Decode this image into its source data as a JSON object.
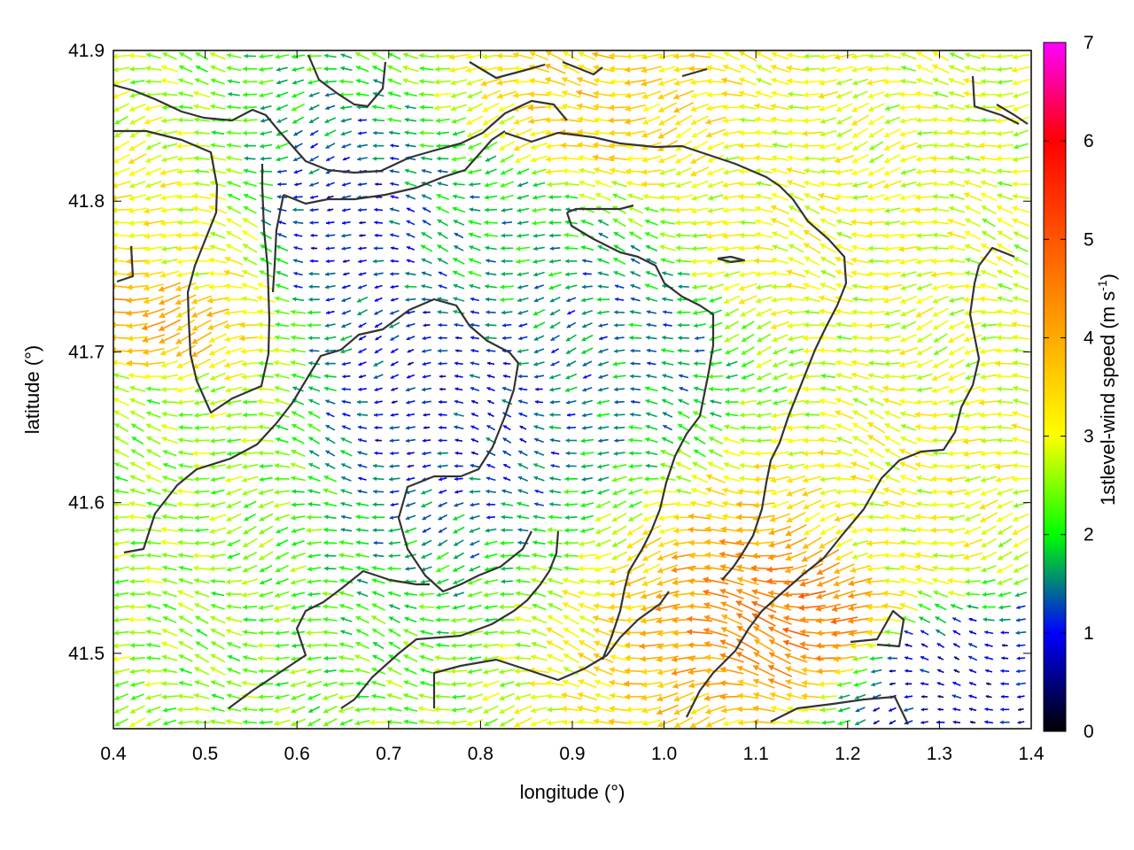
{
  "chart_data": {
    "type": "quiver",
    "title": "",
    "xlabel": "longitude (°)",
    "ylabel": "latitude (°)",
    "xlim": [
      0.4,
      1.4
    ],
    "ylim": [
      41.45,
      41.9
    ],
    "x_ticks": [
      0.4,
      0.5,
      0.6,
      0.7,
      0.8,
      0.9,
      1.0,
      1.1,
      1.2,
      1.3,
      1.4
    ],
    "x_tick_labels": [
      "0.4",
      "0.5",
      "0.6",
      "0.7",
      "0.8",
      "0.9",
      "1.0",
      "1.1",
      "1.2",
      "1.3",
      "1.4"
    ],
    "y_ticks": [
      41.5,
      41.6,
      41.7,
      41.8,
      41.9
    ],
    "y_tick_labels": [
      "41.5",
      "41.6",
      "41.7",
      "41.8",
      "41.9"
    ],
    "grid": false,
    "colorbar": {
      "label_main": "1stlevel-wind speed (m s",
      "label_sup": "-1",
      "label_end": ")",
      "range": [
        0,
        7
      ],
      "ticks": [
        0,
        1,
        2,
        3,
        4,
        5,
        6,
        7
      ],
      "tick_labels": [
        "0",
        "1",
        "2",
        "3",
        "4",
        "5",
        "6",
        "7"
      ],
      "colormap": [
        "#000000",
        "#0000ff",
        "#00ff00",
        "#ffff00",
        "#ff8000",
        "#ff0000",
        "#ff00ff"
      ]
    },
    "vector_field": {
      "grid_step_lon": 0.0175,
      "grid_step_lat": 0.0085,
      "dominant_direction": "westward",
      "approx_cells": [
        {
          "lon": 0.45,
          "lat": 41.73,
          "speed": 4.0
        },
        {
          "lon": 0.48,
          "lat": 41.76,
          "speed": 3.0
        },
        {
          "lon": 0.46,
          "lat": 41.65,
          "speed": 2.5
        },
        {
          "lon": 0.65,
          "lat": 41.78,
          "speed": 1.0
        },
        {
          "lon": 0.75,
          "lat": 41.68,
          "speed": 1.0
        },
        {
          "lon": 0.82,
          "lat": 41.78,
          "speed": 1.8
        },
        {
          "lon": 0.92,
          "lat": 41.86,
          "speed": 3.5
        },
        {
          "lon": 0.95,
          "lat": 41.72,
          "speed": 1.5
        },
        {
          "lon": 1.12,
          "lat": 41.77,
          "speed": 3.0
        },
        {
          "lon": 1.16,
          "lat": 41.53,
          "speed": 4.5
        },
        {
          "lon": 1.25,
          "lat": 41.58,
          "speed": 3.0
        },
        {
          "lon": 1.3,
          "lat": 41.48,
          "speed": 0.8
        }
      ]
    },
    "contour_lines": "dark gray terrain/coast outlines"
  }
}
